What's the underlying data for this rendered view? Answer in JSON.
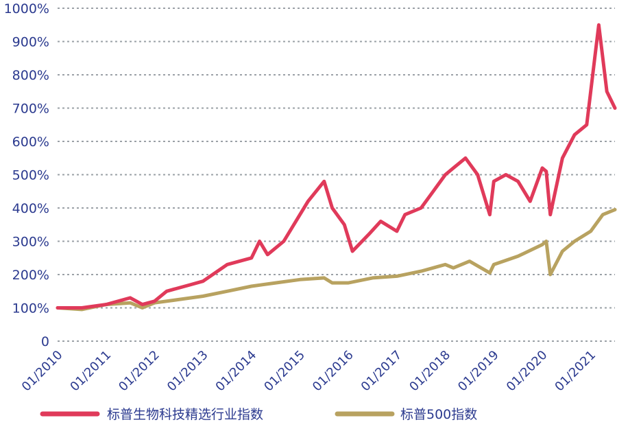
{
  "chart_data": {
    "type": "line",
    "title": "",
    "xlabel": "",
    "ylabel": "",
    "ylim": [
      0,
      1000
    ],
    "y_ticks": [
      0,
      100,
      200,
      300,
      400,
      500,
      600,
      700,
      800,
      900,
      1000
    ],
    "y_tick_labels": [
      "0",
      "100%",
      "200%",
      "300%",
      "400%",
      "500%",
      "600%",
      "700%",
      "800%",
      "900%",
      "1000%"
    ],
    "x_tick_labels": [
      "01/2010",
      "01/2011",
      "01/2012",
      "01/2013",
      "01/2014",
      "01/2015",
      "01/2016",
      "01/2017",
      "01/2018",
      "01/2019",
      "01/2020",
      "01/2021"
    ],
    "x_range": [
      "2010-01",
      "2021-07"
    ],
    "grid": "horizontal dotted",
    "legend_position": "bottom",
    "series": [
      {
        "name": "标普生物科技精选行业指数",
        "color": "#e03a5a",
        "x": [
          "2010-01",
          "2010-07",
          "2011-01",
          "2011-07",
          "2011-10",
          "2012-01",
          "2012-04",
          "2012-10",
          "2013-01",
          "2013-07",
          "2014-01",
          "2014-03",
          "2014-05",
          "2014-09",
          "2015-01",
          "2015-03",
          "2015-07",
          "2015-09",
          "2015-12",
          "2016-02",
          "2016-06",
          "2016-09",
          "2017-01",
          "2017-03",
          "2017-07",
          "2017-10",
          "2018-01",
          "2018-03",
          "2018-06",
          "2018-09",
          "2018-12",
          "2019-01",
          "2019-04",
          "2019-07",
          "2019-10",
          "2020-01",
          "2020-02",
          "2020-03",
          "2020-06",
          "2020-09",
          "2020-12",
          "2021-02",
          "2021-03",
          "2021-05",
          "2021-07"
        ],
        "y": [
          100,
          100,
          110,
          130,
          110,
          120,
          150,
          170,
          180,
          230,
          250,
          300,
          260,
          300,
          380,
          420,
          480,
          400,
          350,
          270,
          320,
          360,
          330,
          380,
          400,
          450,
          500,
          520,
          550,
          500,
          380,
          480,
          500,
          480,
          420,
          520,
          510,
          380,
          550,
          620,
          650,
          850,
          950,
          750,
          700
        ]
      },
      {
        "name": "标普500指数",
        "color": "#b8a260",
        "x": [
          "2010-01",
          "2010-07",
          "2011-01",
          "2011-07",
          "2011-10",
          "2012-01",
          "2012-07",
          "2013-01",
          "2013-07",
          "2014-01",
          "2014-07",
          "2015-01",
          "2015-07",
          "2015-09",
          "2016-01",
          "2016-07",
          "2017-01",
          "2017-07",
          "2018-01",
          "2018-03",
          "2018-07",
          "2018-12",
          "2019-01",
          "2019-07",
          "2020-01",
          "2020-02",
          "2020-03",
          "2020-06",
          "2020-09",
          "2021-01",
          "2021-04",
          "2021-07"
        ],
        "y": [
          100,
          95,
          110,
          115,
          100,
          115,
          125,
          135,
          150,
          165,
          175,
          185,
          190,
          175,
          175,
          190,
          195,
          210,
          230,
          220,
          240,
          205,
          230,
          255,
          290,
          300,
          200,
          270,
          300,
          330,
          380,
          395
        ]
      }
    ]
  }
}
